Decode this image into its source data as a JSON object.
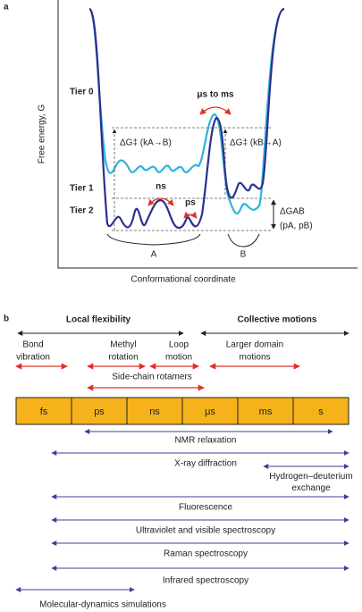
{
  "panel_a": {
    "label": "a",
    "y_axis_label": "Free energy, G",
    "x_axis_label": "Conformational coordinate",
    "tiers": [
      "Tier 0",
      "Tier 1",
      "Tier 2"
    ],
    "barrier_label": "μs to ms",
    "ns_label": "ns",
    "ps_label": "ps",
    "dg_ab_forward": "ΔG‡ (kA→B)",
    "dg_ab_reverse": "ΔG‡ (kB→A)",
    "dg_ab": "ΔGAB",
    "populations": "(pA, pB)",
    "state_a": "A",
    "state_b": "B"
  },
  "panel_b": {
    "label": "b",
    "local_flexibility": "Local flexibility",
    "collective_motions": "Collective motions",
    "motions": [
      {
        "lines": [
          "Bond",
          "vibration"
        ]
      },
      {
        "lines": [
          "Methyl",
          "rotation"
        ]
      },
      {
        "lines": [
          "Loop",
          "motion"
        ]
      },
      {
        "lines": [
          "Larger domain",
          "motions"
        ]
      }
    ],
    "side_chain": "Side-chain rotamers",
    "timescales": [
      "fs",
      "ps",
      "ns",
      "μs",
      "ms",
      "s"
    ],
    "techniques": [
      {
        "name": "NMR relaxation"
      },
      {
        "name": "X-ray diffraction"
      },
      {
        "name": "Hydrogen–deuterium exchange"
      },
      {
        "name": "Fluorescence"
      },
      {
        "name": "Ultraviolet and visible spectroscopy"
      },
      {
        "name": "Raman spectroscopy"
      },
      {
        "name": "Infrared spectroscopy"
      },
      {
        "name": "Molecular-dynamics simulations"
      }
    ]
  }
}
